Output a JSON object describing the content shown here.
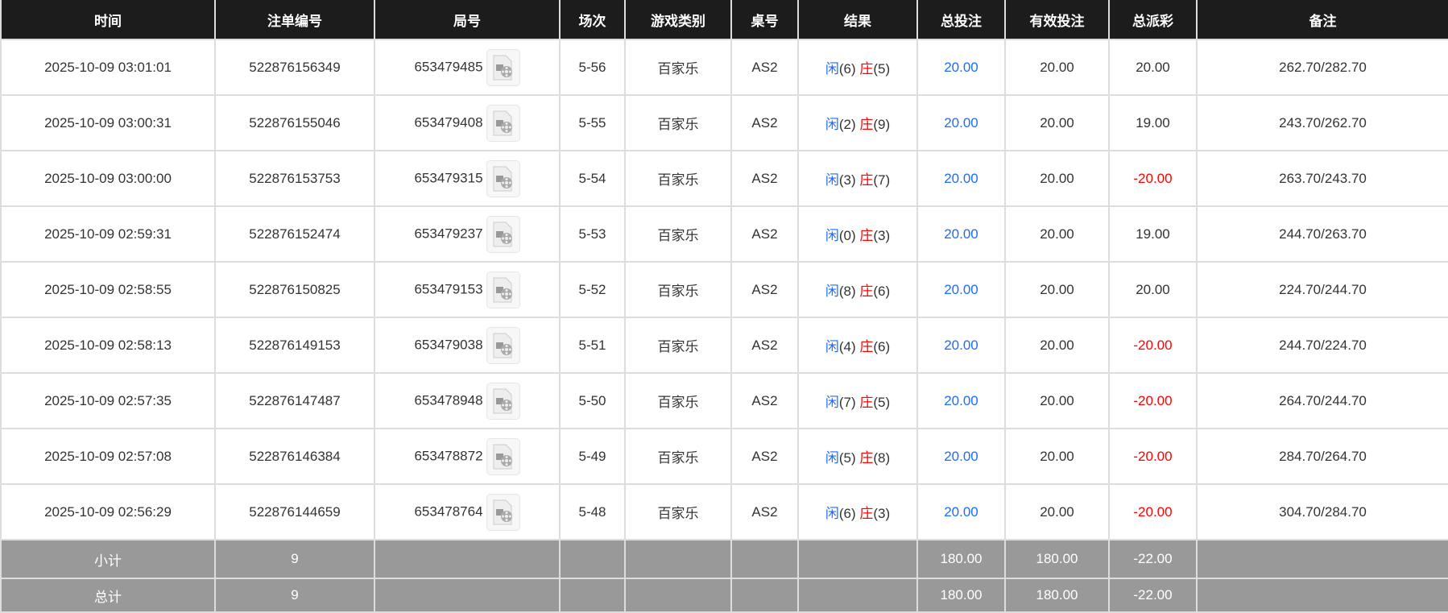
{
  "headers": [
    "时间",
    "注单编号",
    "局号",
    "场次",
    "游戏类别",
    "桌号",
    "结果",
    "总投注",
    "有效投注",
    "总派彩",
    "备注"
  ],
  "rows": [
    {
      "time": "2025-10-09 03:01:01",
      "bet_id": "522876156349",
      "round": "653479485",
      "shoe": "5-56",
      "game": "百家乐",
      "table": "AS2",
      "player": "闲",
      "player_pts": "(6)",
      "banker": "庄",
      "banker_pts": "(5)",
      "total_bet": "20.00",
      "valid_bet": "20.00",
      "payout": "20.00",
      "payout_neg": false,
      "note": "262.70/282.70"
    },
    {
      "time": "2025-10-09 03:00:31",
      "bet_id": "522876155046",
      "round": "653479408",
      "shoe": "5-55",
      "game": "百家乐",
      "table": "AS2",
      "player": "闲",
      "player_pts": "(2)",
      "banker": "庄",
      "banker_pts": "(9)",
      "total_bet": "20.00",
      "valid_bet": "20.00",
      "payout": "19.00",
      "payout_neg": false,
      "note": "243.70/262.70"
    },
    {
      "time": "2025-10-09 03:00:00",
      "bet_id": "522876153753",
      "round": "653479315",
      "shoe": "5-54",
      "game": "百家乐",
      "table": "AS2",
      "player": "闲",
      "player_pts": "(3)",
      "banker": "庄",
      "banker_pts": "(7)",
      "total_bet": "20.00",
      "valid_bet": "20.00",
      "payout": "-20.00",
      "payout_neg": true,
      "note": "263.70/243.70"
    },
    {
      "time": "2025-10-09 02:59:31",
      "bet_id": "522876152474",
      "round": "653479237",
      "shoe": "5-53",
      "game": "百家乐",
      "table": "AS2",
      "player": "闲",
      "player_pts": "(0)",
      "banker": "庄",
      "banker_pts": "(3)",
      "total_bet": "20.00",
      "valid_bet": "20.00",
      "payout": "19.00",
      "payout_neg": false,
      "note": "244.70/263.70"
    },
    {
      "time": "2025-10-09 02:58:55",
      "bet_id": "522876150825",
      "round": "653479153",
      "shoe": "5-52",
      "game": "百家乐",
      "table": "AS2",
      "player": "闲",
      "player_pts": "(8)",
      "banker": "庄",
      "banker_pts": "(6)",
      "total_bet": "20.00",
      "valid_bet": "20.00",
      "payout": "20.00",
      "payout_neg": false,
      "note": "224.70/244.70"
    },
    {
      "time": "2025-10-09 02:58:13",
      "bet_id": "522876149153",
      "round": "653479038",
      "shoe": "5-51",
      "game": "百家乐",
      "table": "AS2",
      "player": "闲",
      "player_pts": "(4)",
      "banker": "庄",
      "banker_pts": "(6)",
      "total_bet": "20.00",
      "valid_bet": "20.00",
      "payout": "-20.00",
      "payout_neg": true,
      "note": "244.70/224.70"
    },
    {
      "time": "2025-10-09 02:57:35",
      "bet_id": "522876147487",
      "round": "653478948",
      "shoe": "5-50",
      "game": "百家乐",
      "table": "AS2",
      "player": "闲",
      "player_pts": "(7)",
      "banker": "庄",
      "banker_pts": "(5)",
      "total_bet": "20.00",
      "valid_bet": "20.00",
      "payout": "-20.00",
      "payout_neg": true,
      "note": "264.70/244.70"
    },
    {
      "time": "2025-10-09 02:57:08",
      "bet_id": "522876146384",
      "round": "653478872",
      "shoe": "5-49",
      "game": "百家乐",
      "table": "AS2",
      "player": "闲",
      "player_pts": "(5)",
      "banker": "庄",
      "banker_pts": "(8)",
      "total_bet": "20.00",
      "valid_bet": "20.00",
      "payout": "-20.00",
      "payout_neg": true,
      "note": "284.70/264.70"
    },
    {
      "time": "2025-10-09 02:56:29",
      "bet_id": "522876144659",
      "round": "653478764",
      "shoe": "5-48",
      "game": "百家乐",
      "table": "AS2",
      "player": "闲",
      "player_pts": "(6)",
      "banker": "庄",
      "banker_pts": "(3)",
      "total_bet": "20.00",
      "valid_bet": "20.00",
      "payout": "-20.00",
      "payout_neg": true,
      "note": "304.70/284.70"
    }
  ],
  "subtotal": {
    "label": "小计",
    "count": "9",
    "total_bet": "180.00",
    "valid_bet": "180.00",
    "payout": "-22.00"
  },
  "total": {
    "label": "总计",
    "count": "9",
    "total_bet": "180.00",
    "valid_bet": "180.00",
    "payout": "-22.00"
  },
  "colors": {
    "header_bg": "#1c1c1c",
    "player": "#1a6cff",
    "banker": "#ff0000",
    "summary_bg": "#999999"
  },
  "icons": {
    "replay": "video-file-icon"
  }
}
